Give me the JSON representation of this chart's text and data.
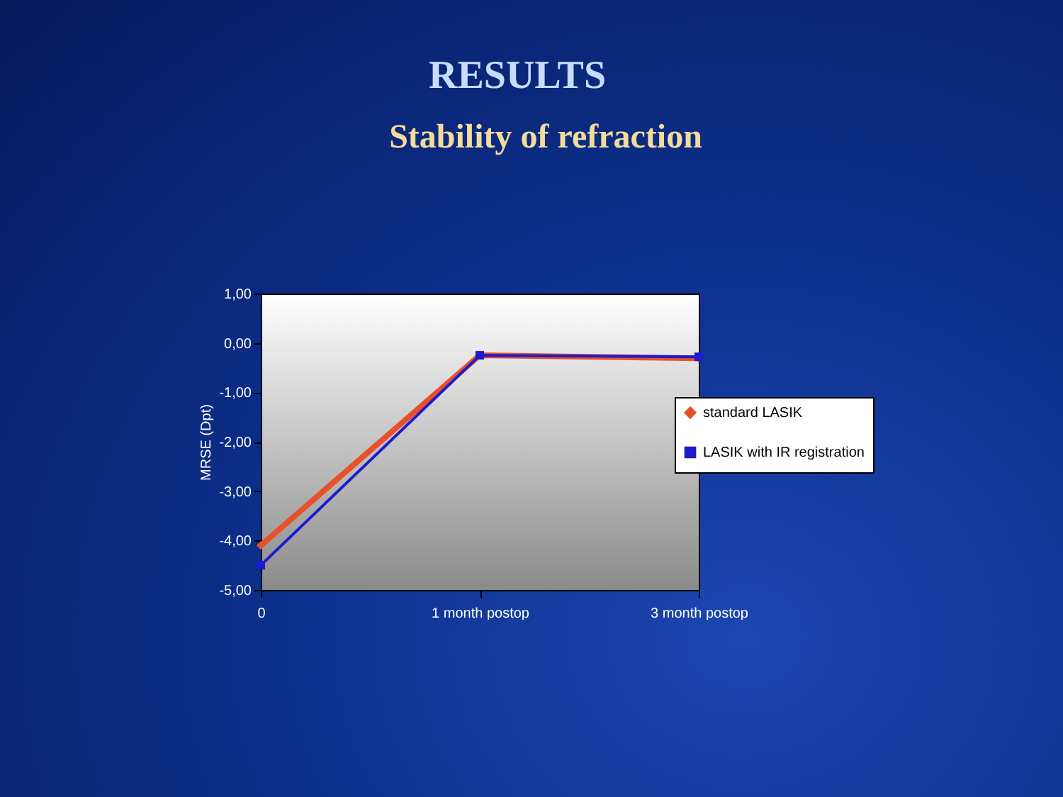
{
  "chart_data": {
    "type": "line",
    "title": "RESULTS",
    "subtitle": "Stability of refraction",
    "ylabel": "MRSE (Dpt)",
    "categories": [
      "0",
      "1 month postop",
      "3 month postop"
    ],
    "series": [
      {
        "name": "standard LASIK",
        "color": "#e8502a",
        "values": [
          -4.1,
          -0.25,
          -0.31
        ],
        "marker": "diamond"
      },
      {
        "name": "LASIK with IR registration",
        "color": "#1c1ccc",
        "values": [
          -4.5,
          -0.25,
          -0.28
        ],
        "marker": "square"
      }
    ],
    "ylim": [
      -5,
      1
    ],
    "yticks": [
      {
        "value": 1,
        "label": "1,00"
      },
      {
        "value": 0,
        "label": "0,00"
      },
      {
        "value": -1,
        "label": "-1,00"
      },
      {
        "value": -2,
        "label": "-2,00"
      },
      {
        "value": -3,
        "label": "-3,00"
      },
      {
        "value": -4,
        "label": "-4,00"
      },
      {
        "value": -5,
        "label": "-5,00"
      }
    ],
    "grid": false,
    "legend": "right",
    "line_style": "solid"
  }
}
